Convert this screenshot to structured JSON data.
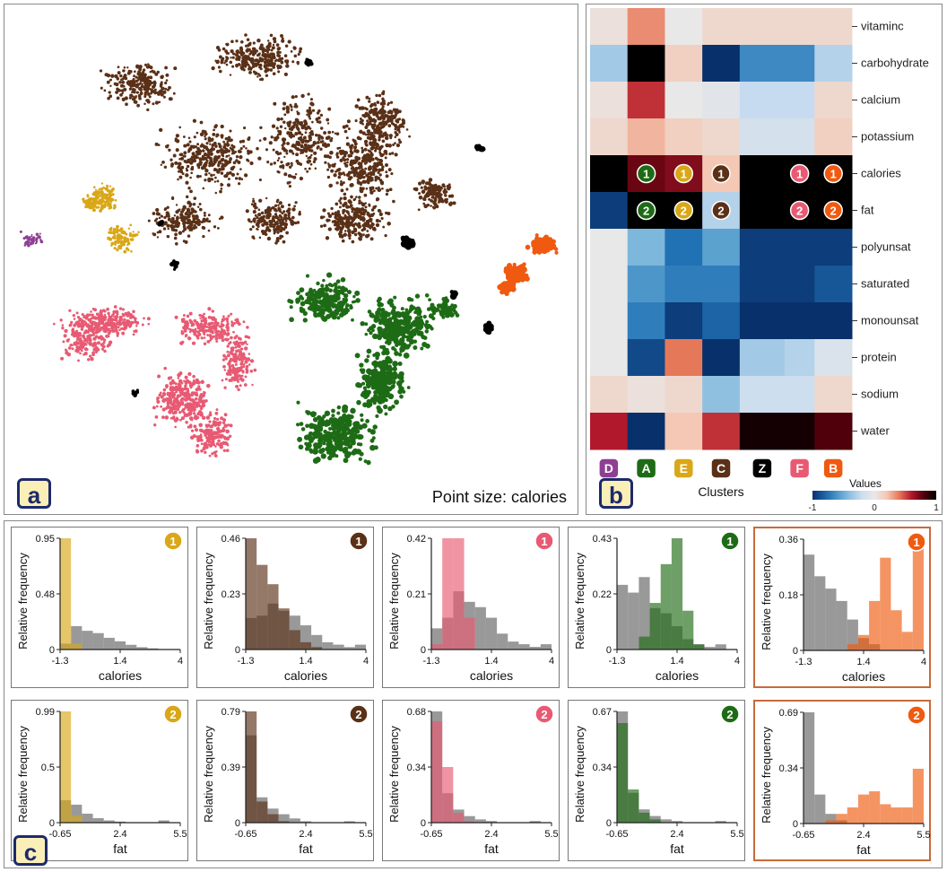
{
  "panel_a": {
    "label": "a",
    "caption": "Point size: calories",
    "clusters": [
      {
        "id": "D",
        "color": "#8e3f93"
      },
      {
        "id": "A",
        "color": "#1e6b16"
      },
      {
        "id": "E",
        "color": "#d9a717"
      },
      {
        "id": "C",
        "color": "#5a3017"
      },
      {
        "id": "Z",
        "color": "#000000"
      },
      {
        "id": "F",
        "color": "#e85a73"
      },
      {
        "id": "B",
        "color": "#ef5a10"
      }
    ]
  },
  "panel_b": {
    "label": "b",
    "clusters_label": "Clusters",
    "legend_title": "Values",
    "legend_ticks": [
      "-1",
      "0",
      "1"
    ]
  },
  "panel_c": {
    "label": "c"
  },
  "chart_data": [
    {
      "type": "heatmap",
      "rows": [
        "vitaminc",
        "carbohydrate",
        "calcium",
        "potassium",
        "calories",
        "fat",
        "polyunsat",
        "saturated",
        "monounsat",
        "protein",
        "sodium",
        "water"
      ],
      "columns": [
        "D",
        "A",
        "E",
        "C",
        "Z",
        "F",
        "B"
      ],
      "column_colors": [
        "#8e3f93",
        "#1e6b16",
        "#d9a717",
        "#5a3017",
        "#000000",
        "#e85a73",
        "#ef5a10"
      ],
      "column_shares": [
        1,
        1,
        1,
        1,
        1.2,
        0.8,
        1
      ],
      "values": [
        [
          0.05,
          0.35,
          0.0,
          0.1,
          0.1,
          0.1,
          0.1
        ],
        [
          -0.35,
          1.0,
          0.15,
          -1.0,
          -0.65,
          -0.65,
          -0.3
        ],
        [
          0.05,
          0.55,
          0.0,
          -0.05,
          -0.25,
          -0.25,
          0.1
        ],
        [
          0.1,
          0.25,
          0.15,
          0.1,
          -0.15,
          -0.15,
          0.15
        ],
        [
          1.0,
          0.75,
          0.7,
          0.2,
          1.0,
          1.0,
          1.0
        ],
        [
          -0.95,
          1.0,
          1.0,
          -0.3,
          1.0,
          1.0,
          1.0
        ],
        [
          0.0,
          -0.45,
          -0.75,
          -0.55,
          -0.95,
          -0.95,
          -0.95
        ],
        [
          0.0,
          -0.6,
          -0.7,
          -0.7,
          -0.95,
          -0.95,
          -0.85
        ],
        [
          0.0,
          -0.7,
          -0.95,
          -0.8,
          -1.0,
          -1.0,
          -1.0
        ],
        [
          0.0,
          -0.9,
          0.4,
          -1.0,
          -0.35,
          -0.3,
          -0.1
        ],
        [
          0.1,
          0.05,
          0.1,
          -0.4,
          -0.2,
          -0.2,
          0.1
        ],
        [
          0.6,
          -1.0,
          0.2,
          0.55,
          0.95,
          0.95,
          0.8
        ]
      ],
      "xlabel": "Clusters",
      "colorbar_range": [
        -1,
        1
      ],
      "markers": [
        {
          "row": "calories",
          "column": "A",
          "text": "1"
        },
        {
          "row": "calories",
          "column": "E",
          "text": "1"
        },
        {
          "row": "calories",
          "column": "C",
          "text": "1"
        },
        {
          "row": "calories",
          "column": "F",
          "text": "1"
        },
        {
          "row": "calories",
          "column": "B",
          "text": "1"
        },
        {
          "row": "fat",
          "column": "A",
          "text": "2"
        },
        {
          "row": "fat",
          "column": "E",
          "text": "2"
        },
        {
          "row": "fat",
          "column": "C",
          "text": "2"
        },
        {
          "row": "fat",
          "column": "F",
          "text": "2"
        },
        {
          "row": "fat",
          "column": "B",
          "text": "2"
        }
      ]
    },
    {
      "type": "bar",
      "row": 1,
      "col": 1,
      "badge": "1",
      "color": "#d9a717",
      "xlabel": "calories",
      "ylabel": "Relative frequency",
      "xticks": [
        "-1.3",
        "1.4",
        "4"
      ],
      "yticks": [
        "0",
        "0.48",
        "0.95"
      ],
      "ymax": 0.95,
      "series": [
        {
          "values": [
            0.05,
            0.2,
            0.16,
            0.14,
            0.1,
            0.07,
            0.04,
            0.02,
            0.01,
            0.0,
            0.0
          ]
        },
        {
          "values": [
            0.95,
            0.05,
            0.0,
            0.0,
            0.0,
            0.0,
            0.0,
            0.0,
            0.0,
            0.0,
            0.0
          ]
        }
      ]
    },
    {
      "type": "bar",
      "row": 1,
      "col": 2,
      "badge": "1",
      "color": "#5a3017",
      "xlabel": "calories",
      "ylabel": "Relative frequency",
      "xticks": [
        "-1.3",
        "1.4",
        "4"
      ],
      "yticks": [
        "0",
        "0.23",
        "0.46"
      ],
      "ymax": 0.46,
      "series": [
        {
          "values": [
            0.13,
            0.14,
            0.19,
            0.16,
            0.14,
            0.1,
            0.06,
            0.03,
            0.02,
            0.01,
            0.02
          ]
        },
        {
          "values": [
            0.46,
            0.35,
            0.27,
            0.17,
            0.08,
            0.03,
            0.01,
            0.0,
            0.0,
            0.0,
            0.0
          ]
        }
      ]
    },
    {
      "type": "bar",
      "row": 1,
      "col": 3,
      "badge": "1",
      "color": "#e85a73",
      "xlabel": "calories",
      "ylabel": "Relative frequency",
      "xticks": [
        "-1.3",
        "1.4",
        "4"
      ],
      "yticks": [
        "0",
        "0.21",
        "0.42"
      ],
      "ymax": 0.42,
      "series": [
        {
          "values": [
            0.08,
            0.12,
            0.22,
            0.18,
            0.16,
            0.12,
            0.06,
            0.03,
            0.02,
            0.01,
            0.02
          ]
        },
        {
          "values": [
            0.02,
            0.42,
            0.42,
            0.12,
            0.0,
            0.0,
            0.0,
            0.0,
            0.0,
            0.0,
            0.0
          ]
        }
      ]
    },
    {
      "type": "bar",
      "row": 1,
      "col": 4,
      "badge": "1",
      "color": "#1e6b16",
      "xlabel": "calories",
      "ylabel": "Relative frequency",
      "xticks": [
        "-1.3",
        "1.4",
        "4"
      ],
      "yticks": [
        "0",
        "0.22",
        "0.43"
      ],
      "ymax": 0.43,
      "series": [
        {
          "values": [
            0.25,
            0.22,
            0.28,
            0.16,
            0.14,
            0.09,
            0.04,
            0.02,
            0.01,
            0.02,
            0.0
          ]
        },
        {
          "values": [
            0.0,
            0.0,
            0.05,
            0.18,
            0.33,
            0.43,
            0.15,
            0.02,
            0.0,
            0.0,
            0.0
          ]
        }
      ]
    },
    {
      "type": "bar",
      "row": 1,
      "col": 5,
      "badge": "1",
      "color": "#ef5a10",
      "xlabel": "calories",
      "ylabel": "Relative frequency",
      "xticks": [
        "-1.3",
        "1.4",
        "4"
      ],
      "yticks": [
        "0",
        "0.18",
        "0.36"
      ],
      "ymax": 0.36,
      "series": [
        {
          "values": [
            0.31,
            0.24,
            0.2,
            0.16,
            0.1,
            0.04,
            0.02,
            0.0,
            0.0,
            0.0,
            0.0
          ]
        },
        {
          "values": [
            0.0,
            0.0,
            0.0,
            0.0,
            0.02,
            0.05,
            0.16,
            0.3,
            0.13,
            0.06,
            0.36
          ]
        }
      ]
    },
    {
      "type": "bar",
      "row": 2,
      "col": 1,
      "badge": "2",
      "color": "#d9a717",
      "xlabel": "fat",
      "ylabel": "Relative frequency",
      "xticks": [
        "-0.65",
        "2.4",
        "5.5"
      ],
      "yticks": [
        "0",
        "0.5",
        "0.99"
      ],
      "ymax": 0.99,
      "series": [
        {
          "values": [
            0.2,
            0.16,
            0.08,
            0.04,
            0.02,
            0.01,
            0.0,
            0.0,
            0.0,
            0.02,
            0.0
          ]
        },
        {
          "values": [
            0.99,
            0.06,
            0.0,
            0.0,
            0.0,
            0.0,
            0.0,
            0.0,
            0.0,
            0.0,
            0.0
          ]
        }
      ]
    },
    {
      "type": "bar",
      "row": 2,
      "col": 2,
      "badge": "2",
      "color": "#5a3017",
      "xlabel": "fat",
      "ylabel": "Relative frequency",
      "xticks": [
        "-0.65",
        "2.4",
        "5.5"
      ],
      "yticks": [
        "0",
        "0.39",
        "0.79"
      ],
      "ymax": 0.79,
      "series": [
        {
          "values": [
            0.62,
            0.18,
            0.1,
            0.06,
            0.03,
            0.01,
            0.0,
            0.0,
            0.0,
            0.01,
            0.0
          ]
        },
        {
          "values": [
            0.79,
            0.15,
            0.06,
            0.01,
            0.0,
            0.0,
            0.0,
            0.0,
            0.0,
            0.0,
            0.0
          ]
        }
      ]
    },
    {
      "type": "bar",
      "row": 2,
      "col": 3,
      "badge": "2",
      "color": "#e85a73",
      "xlabel": "fat",
      "ylabel": "Relative frequency",
      "xticks": [
        "-0.65",
        "2.4",
        "5.5"
      ],
      "yticks": [
        "0",
        "0.34",
        "0.68"
      ],
      "ymax": 0.68,
      "series": [
        {
          "values": [
            0.68,
            0.18,
            0.08,
            0.04,
            0.02,
            0.01,
            0.0,
            0.0,
            0.0,
            0.01,
            0.0
          ]
        },
        {
          "values": [
            0.62,
            0.34,
            0.06,
            0.01,
            0.0,
            0.0,
            0.0,
            0.0,
            0.0,
            0.0,
            0.0
          ]
        }
      ]
    },
    {
      "type": "bar",
      "row": 2,
      "col": 4,
      "badge": "2",
      "color": "#1e6b16",
      "xlabel": "fat",
      "ylabel": "Relative frequency",
      "xticks": [
        "-0.65",
        "2.4",
        "5.5"
      ],
      "yticks": [
        "0",
        "0.34",
        "0.67"
      ],
      "ymax": 0.67,
      "series": [
        {
          "values": [
            0.67,
            0.18,
            0.08,
            0.04,
            0.02,
            0.01,
            0.0,
            0.0,
            0.0,
            0.01,
            0.0
          ]
        },
        {
          "values": [
            0.6,
            0.2,
            0.06,
            0.02,
            0.0,
            0.0,
            0.0,
            0.0,
            0.0,
            0.0,
            0.0
          ]
        }
      ]
    },
    {
      "type": "bar",
      "row": 2,
      "col": 5,
      "badge": "2",
      "color": "#ef5a10",
      "xlabel": "fat",
      "ylabel": "Relative frequency",
      "xticks": [
        "-0.65",
        "2.4",
        "5.5"
      ],
      "yticks": [
        "0",
        "0.34",
        "0.69"
      ],
      "ymax": 0.69,
      "series": [
        {
          "values": [
            0.69,
            0.18,
            0.06,
            0.02,
            0.0,
            0.0,
            0.0,
            0.0,
            0.0,
            0.0,
            0.0
          ]
        },
        {
          "values": [
            0.0,
            0.0,
            0.02,
            0.06,
            0.1,
            0.18,
            0.2,
            0.12,
            0.1,
            0.1,
            0.34
          ]
        }
      ]
    }
  ]
}
